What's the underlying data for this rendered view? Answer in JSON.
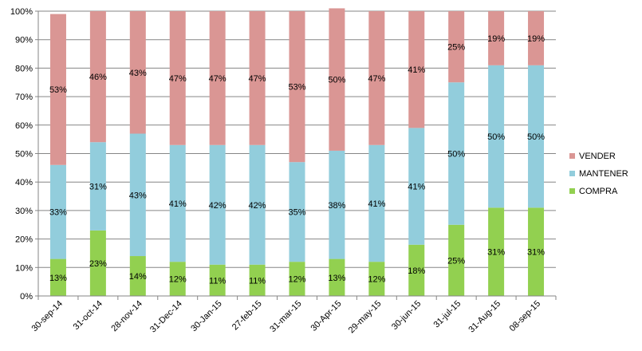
{
  "chart_data": {
    "type": "bar",
    "stacked": true,
    "grid": true,
    "legend_position": "right",
    "ylim": [
      0,
      100
    ],
    "y_ticks": [
      "0%",
      "10%",
      "20%",
      "30%",
      "40%",
      "50%",
      "60%",
      "70%",
      "80%",
      "90%",
      "100%"
    ],
    "categories": [
      "30-sep-14",
      "31-oct-14",
      "28-nov-14",
      "31-Dec-14",
      "30-Jan-15",
      "27-feb-15",
      "31-mar-15",
      "30-Apr-15",
      "29-may-15",
      "30-jun-15",
      "31-jul-15",
      "31-Aug-15",
      "08-sep-15"
    ],
    "series": [
      {
        "name": "COMPRA",
        "color": "#92d050",
        "values": [
          13,
          23,
          14,
          12,
          11,
          11,
          12,
          13,
          12,
          18,
          25,
          31,
          31
        ],
        "labels": [
          "13%",
          "23%",
          "14%",
          "12%",
          "11%",
          "11%",
          "12%",
          "13%",
          "12%",
          "18%",
          "25%",
          "31%",
          "31%"
        ]
      },
      {
        "name": "MANTENER",
        "color": "#92cddc",
        "values": [
          33,
          31,
          43,
          41,
          42,
          42,
          35,
          38,
          41,
          41,
          50,
          50,
          50
        ],
        "labels": [
          "33%",
          "31%",
          "43%",
          "41%",
          "42%",
          "42%",
          "35%",
          "38%",
          "41%",
          "41%",
          "50%",
          "50%",
          "50%"
        ]
      },
      {
        "name": "VENDER",
        "color": "#da9694",
        "values": [
          53,
          46,
          43,
          47,
          47,
          47,
          53,
          50,
          47,
          41,
          25,
          19,
          19
        ],
        "labels": [
          "53%",
          "46%",
          "43%",
          "47%",
          "47%",
          "47%",
          "53%",
          "50%",
          "47%",
          "41%",
          "25%",
          "19%",
          "19%"
        ]
      }
    ],
    "legend_order": [
      "VENDER",
      "MANTENER",
      "COMPRA"
    ]
  }
}
